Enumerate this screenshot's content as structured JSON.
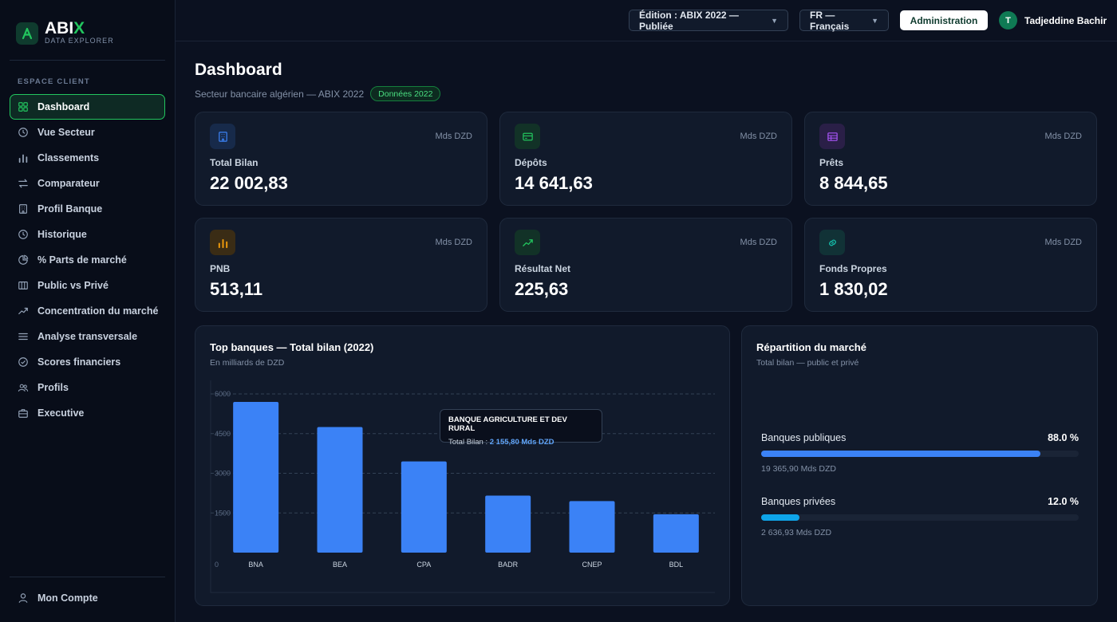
{
  "brand": {
    "name_main": "ABI",
    "name_accent": "X",
    "subtitle": "DATA EXPLORER",
    "accent_color": "#22c55e"
  },
  "sidebar": {
    "section_label": "ESPACE CLIENT",
    "items": [
      {
        "label": "Dashboard",
        "icon": "grid-icon",
        "active": true
      },
      {
        "label": "Vue Secteur",
        "icon": "clock-icon"
      },
      {
        "label": "Classements",
        "icon": "bar-chart-icon"
      },
      {
        "label": "Comparateur",
        "icon": "swap-icon"
      },
      {
        "label": "Profil Banque",
        "icon": "building-icon"
      },
      {
        "label": "Historique",
        "icon": "clock-icon"
      },
      {
        "label": "% Parts de marché",
        "icon": "pie-icon"
      },
      {
        "label": "Public vs Privé",
        "icon": "columns-icon"
      },
      {
        "label": "Concentration du marché",
        "icon": "trend-icon"
      },
      {
        "label": "Analyse transversale",
        "icon": "lines-icon"
      },
      {
        "label": "Scores financiers",
        "icon": "check-circle-icon"
      },
      {
        "label": "Profils",
        "icon": "users-icon"
      },
      {
        "label": "Executive",
        "icon": "briefcase-icon"
      }
    ],
    "account_label": "Mon Compte"
  },
  "topbar": {
    "edition": "Édition : ABIX 2022 — Publiée",
    "language": "FR — Français",
    "admin_label": "Administration",
    "user_initial": "T",
    "user_name": "Tadjeddine Bachir"
  },
  "page": {
    "title": "Dashboard",
    "subtitle": "Secteur bancaire algérien — ABIX 2022",
    "badge": "Données 2022"
  },
  "kpis": [
    {
      "label": "Total Bilan",
      "value": "22 002,83",
      "unit": "Mds DZD",
      "icon": "building-icon",
      "color": "#3b82f6",
      "bg": "#172a4a"
    },
    {
      "label": "Dépôts",
      "value": "14 641,63",
      "unit": "Mds DZD",
      "icon": "card-icon",
      "color": "#22c55e",
      "bg": "#123227"
    },
    {
      "label": "Prêts",
      "value": "8 844,65",
      "unit": "Mds DZD",
      "icon": "table-icon",
      "color": "#a855f7",
      "bg": "#2a1f47"
    },
    {
      "label": "PNB",
      "value": "513,11",
      "unit": "Mds DZD",
      "icon": "bar-chart-icon",
      "color": "#f59e0b",
      "bg": "#3a2c15"
    },
    {
      "label": "Résultat Net",
      "value": "225,63",
      "unit": "Mds DZD",
      "icon": "trend-icon",
      "color": "#22c55e",
      "bg": "#123227"
    },
    {
      "label": "Fonds Propres",
      "value": "1 830,02",
      "unit": "Mds DZD",
      "icon": "link-icon",
      "color": "#14b8a6",
      "bg": "#113236"
    }
  ],
  "bar_panel": {
    "title": "Top banques — Total bilan (2022)",
    "subtitle": "En milliards de DZD",
    "tooltip_title": "BANQUE AGRICULTURE ET DEV RURAL",
    "tooltip_label": "Total Bilan : ",
    "tooltip_value": "2 155,80 Mds DZD"
  },
  "chart_data": {
    "type": "bar",
    "categories": [
      "BNA",
      "BEA",
      "CPA",
      "BADR",
      "CNEP",
      "BDL"
    ],
    "values": [
      5700,
      4750,
      3450,
      2155.8,
      1950,
      1450
    ],
    "ylim": [
      0,
      6000
    ],
    "yticks": [
      0,
      1500,
      3000,
      4500,
      6000
    ],
    "bar_color": "#3b82f6",
    "grid": true
  },
  "market": {
    "title": "Répartition du marché",
    "subtitle": "Total bilan — public et privé",
    "rows": [
      {
        "name": "Banques publiques",
        "pct_label": "88.0 %",
        "pct": 88.0,
        "amount": "19 365,90 Mds DZD",
        "color": "#3b82f6"
      },
      {
        "name": "Banques privées",
        "pct_label": "12.0 %",
        "pct": 12.0,
        "amount": "2 636,93 Mds DZD",
        "color": "#0ea5e9"
      }
    ]
  }
}
